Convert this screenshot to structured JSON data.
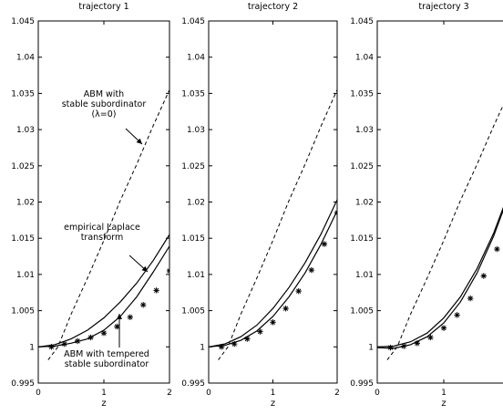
{
  "chart_data": [
    {
      "type": "line",
      "title": "trajectory 1",
      "xlabel": "z",
      "ylabel": "",
      "xlim": [
        0,
        2
      ],
      "ylim": [
        0.995,
        1.045
      ],
      "xticks": [
        "0",
        "1",
        "2"
      ],
      "yticks": [
        "0.995",
        "1",
        "1.005",
        "1.01",
        "1.015",
        "1.02",
        "1.025",
        "1.03",
        "1.035",
        "1.04",
        "1.045"
      ],
      "series": [
        {
          "style": "dashed",
          "x": [
            0.15,
            0.3,
            0.5,
            0.75,
            1.0,
            1.25,
            1.5,
            1.75,
            2.0
          ],
          "y": [
            0.9982,
            1.0,
            1.0045,
            1.0095,
            1.0147,
            1.0202,
            1.0252,
            1.0305,
            1.0355
          ]
        },
        {
          "style": "solid",
          "x": [
            0,
            0.25,
            0.5,
            0.75,
            1.0,
            1.25,
            1.5,
            1.75,
            2.0
          ],
          "y": [
            1.0,
            1.0003,
            1.0011,
            1.0023,
            1.004,
            1.0062,
            1.0088,
            1.0119,
            1.0155
          ]
        },
        {
          "style": "solid",
          "x": [
            0,
            0.25,
            0.5,
            0.75,
            1.0,
            1.25,
            1.5,
            1.75,
            2.0
          ],
          "y": [
            1.0,
            1.0001,
            1.0005,
            1.0011,
            1.0023,
            1.0042,
            1.0069,
            1.0103,
            1.0139
          ]
        },
        {
          "style": "star",
          "x": [
            0.2,
            0.4,
            0.6,
            0.8,
            1.0,
            1.2,
            1.4,
            1.6,
            1.8,
            2.0
          ],
          "y": [
            1.0,
            1.0004,
            1.0008,
            1.0013,
            1.0019,
            1.0028,
            1.0041,
            1.0058,
            1.0078,
            1.0105
          ]
        }
      ],
      "annotations": [
        {
          "text": "ABM with\nstable subordinator\n(λ=0)"
        },
        {
          "text": "empirical Laplace\ntransform"
        },
        {
          "text": "ABM with tempered\nstable subordinator"
        }
      ]
    },
    {
      "type": "line",
      "title": "trajectory 2",
      "xlabel": "z",
      "ylabel": "",
      "xlim": [
        0,
        2
      ],
      "ylim": [
        0.995,
        1.045
      ],
      "xticks": [
        "0",
        "1",
        "2"
      ],
      "yticks": [
        "0.995",
        "1",
        "1.005",
        "1.01",
        "1.015",
        "1.02",
        "1.025",
        "1.03",
        "1.035",
        "1.04",
        "1.045"
      ],
      "series": [
        {
          "style": "dashed",
          "x": [
            0.15,
            0.3,
            0.5,
            0.75,
            1.0,
            1.25,
            1.5,
            1.75,
            2.0
          ],
          "y": [
            0.9982,
            1.0,
            1.0045,
            1.0095,
            1.0147,
            1.0202,
            1.0252,
            1.0305,
            1.0355
          ]
        },
        {
          "style": "solid",
          "x": [
            0,
            0.25,
            0.5,
            0.75,
            1.0,
            1.25,
            1.5,
            1.75,
            2.0
          ],
          "y": [
            1.0,
            1.0004,
            1.0014,
            1.003,
            1.0053,
            1.0082,
            1.0116,
            1.0156,
            1.0203
          ]
        },
        {
          "style": "solid",
          "x": [
            0,
            0.25,
            0.5,
            0.75,
            1.0,
            1.25,
            1.5,
            1.75,
            2.0
          ],
          "y": [
            1.0,
            1.0002,
            1.0009,
            1.0022,
            1.0042,
            1.0069,
            1.0102,
            1.0142,
            1.0188
          ]
        },
        {
          "style": "star",
          "x": [
            0.2,
            0.4,
            0.6,
            0.8,
            1.0,
            1.2,
            1.4,
            1.6,
            1.8,
            2.0
          ],
          "y": [
            1.0,
            1.0004,
            1.0011,
            1.0021,
            1.0034,
            1.0053,
            1.0077,
            1.0106,
            1.0142,
            1.0185
          ]
        }
      ]
    },
    {
      "type": "line",
      "title": "trajectory 3",
      "xlabel": "z",
      "ylabel": "",
      "xlim": [
        0,
        2
      ],
      "ylim": [
        0.995,
        1.045
      ],
      "xticks": [
        "0",
        "1"
      ],
      "yticks": [
        "0.995",
        "1",
        "1.005",
        "1.01",
        "1.015",
        "1.02",
        "1.025",
        "1.03",
        "1.035",
        "1.04",
        "1.045"
      ],
      "series": [
        {
          "style": "dashed",
          "x": [
            0.15,
            0.3,
            0.5,
            0.75,
            1.0,
            1.25,
            1.5,
            1.75,
            2.0
          ],
          "y": [
            0.9982,
            1.0,
            1.0045,
            1.0095,
            1.0147,
            1.0202,
            1.0252,
            1.0305,
            1.0355
          ]
        },
        {
          "style": "solid",
          "x": [
            0,
            0.25,
            0.5,
            0.75,
            1.0,
            1.25,
            1.5,
            1.75,
            2.0
          ],
          "y": [
            0.9999,
            0.9998,
            1.0003,
            1.0014,
            1.0033,
            1.0062,
            1.0102,
            1.0153,
            1.0215
          ]
        },
        {
          "style": "solid",
          "x": [
            0,
            0.25,
            0.5,
            0.75,
            1.0,
            1.25,
            1.5,
            1.75,
            2.0
          ],
          "y": [
            1.0,
            1.0001,
            1.0007,
            1.0019,
            1.004,
            1.0069,
            1.0108,
            1.0157,
            1.0218
          ]
        },
        {
          "style": "star",
          "x": [
            0.2,
            0.4,
            0.6,
            0.8,
            1.0,
            1.2,
            1.4,
            1.6,
            1.8
          ],
          "y": [
            0.9999,
            1.0001,
            1.0005,
            1.0013,
            1.0026,
            1.0044,
            1.0067,
            1.0098,
            1.0135
          ]
        }
      ]
    }
  ]
}
